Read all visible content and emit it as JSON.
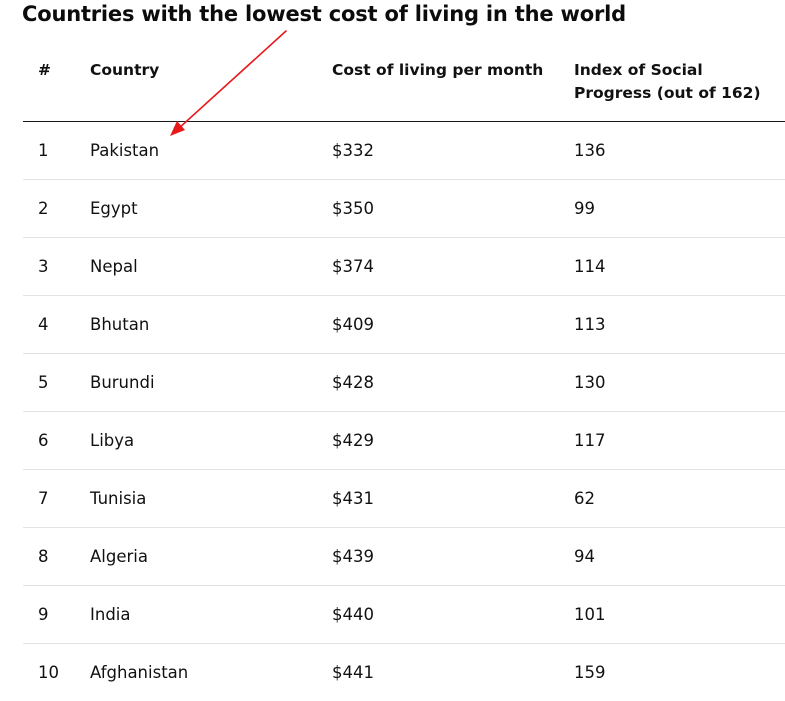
{
  "title": "Countries with the lowest cost of living in the world",
  "table": {
    "headers": {
      "rank": "#",
      "country": "Country",
      "cost": "Cost of living per month",
      "index": "Index of Social Progress (out of 162)"
    },
    "rows": [
      {
        "rank": "1",
        "country": "Pakistan",
        "cost": "$332",
        "index": "136"
      },
      {
        "rank": "2",
        "country": "Egypt",
        "cost": "$350",
        "index": "99"
      },
      {
        "rank": "3",
        "country": "Nepal",
        "cost": "$374",
        "index": "114"
      },
      {
        "rank": "4",
        "country": "Bhutan",
        "cost": "$409",
        "index": "113"
      },
      {
        "rank": "5",
        "country": "Burundi",
        "cost": "$428",
        "index": "130"
      },
      {
        "rank": "6",
        "country": "Libya",
        "cost": "$429",
        "index": "117"
      },
      {
        "rank": "7",
        "country": "Tunisia",
        "cost": "$431",
        "index": "62"
      },
      {
        "rank": "8",
        "country": "Algeria",
        "cost": "$439",
        "index": "94"
      },
      {
        "rank": "9",
        "country": "India",
        "cost": "$440",
        "index": "101"
      },
      {
        "rank": "10",
        "country": "Afghanistan",
        "cost": "$441",
        "index": "159"
      }
    ]
  },
  "annotation": {
    "icon": "arrow-icon",
    "color": "#e8181b"
  }
}
